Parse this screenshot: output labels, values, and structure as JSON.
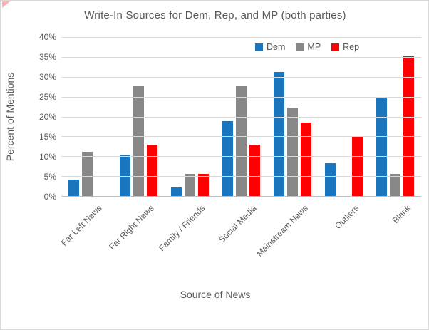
{
  "window": {
    "background": "#ffffff",
    "border_color": "#d9d9d9"
  },
  "colors": {
    "gridline": "#d9d9d9",
    "axis_line": "#bfbfbf",
    "text": "#595959",
    "corner_marker": "#ff0000"
  },
  "chart_data": {
    "type": "bar",
    "title": "Write-In Sources for Dem, Rep, and MP (both parties)",
    "xlabel": "Source of News",
    "ylabel": "Percent of Mentions",
    "categories": [
      "Far Left News",
      "Far Right News",
      "Family / Friends",
      "Social Media",
      "Mainstream News",
      "Outliers",
      "Blank"
    ],
    "series": [
      {
        "name": "Dem",
        "color": "#1b75bc",
        "values": [
          4.17,
          10.42,
          2.08,
          18.75,
          31.25,
          8.33,
          25.0
        ]
      },
      {
        "name": "MP",
        "color": "#878787",
        "values": [
          11.11,
          27.78,
          5.56,
          27.78,
          22.22,
          0,
          5.56
        ]
      },
      {
        "name": "Rep",
        "color": "#ff0000",
        "values": [
          0,
          12.96,
          5.56,
          12.96,
          18.52,
          14.81,
          35.19
        ]
      }
    ],
    "ylim": [
      0,
      40
    ],
    "yticks": [
      0,
      5,
      10,
      15,
      20,
      25,
      30,
      35,
      40
    ],
    "ytick_suffix": "%",
    "grid": true,
    "legend_position": "top-inside",
    "legend": [
      "Dem",
      "MP",
      "Rep"
    ]
  }
}
